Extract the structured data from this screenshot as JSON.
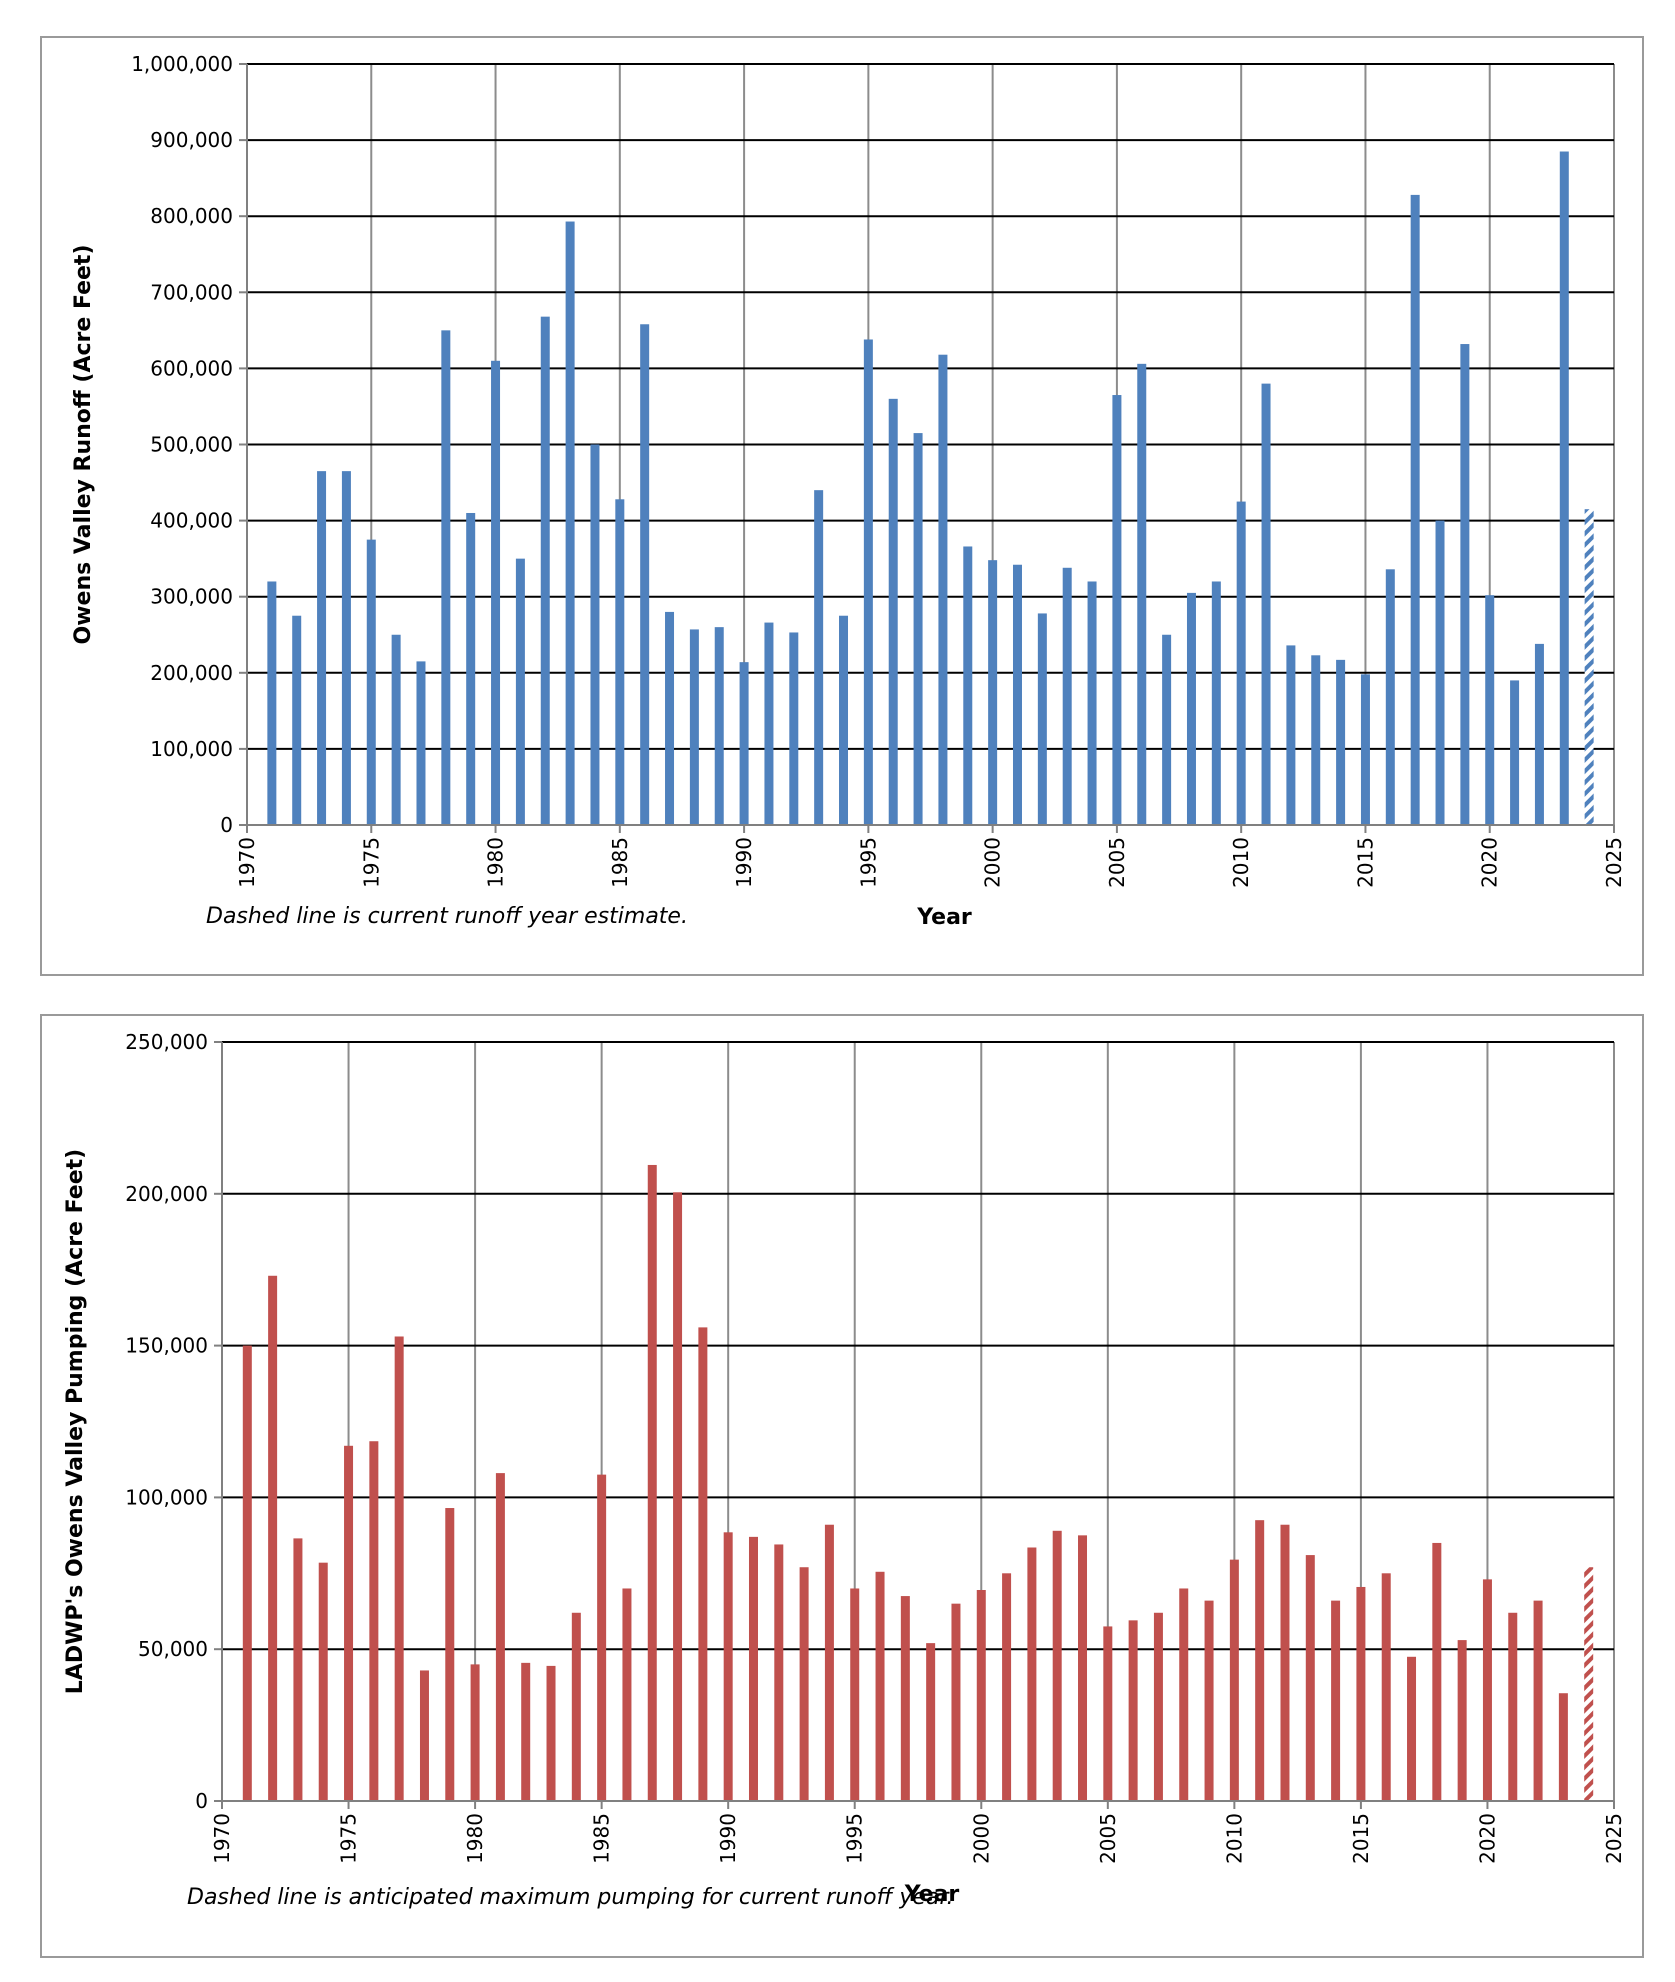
{
  "chart_data": [
    {
      "type": "bar",
      "title": "",
      "xlabel": "Year",
      "ylabel": "Owens Valley Runoff (Acre Feet)",
      "ylim": [
        0,
        1000000
      ],
      "xlim": [
        1970,
        2025
      ],
      "y_ticks": [
        "0",
        "100,000",
        "200,000",
        "300,000",
        "400,000",
        "500,000",
        "600,000",
        "700,000",
        "800,000",
        "900,000",
        "1,000,000"
      ],
      "y_tick_values": [
        0,
        100000,
        200000,
        300000,
        400000,
        500000,
        600000,
        700000,
        800000,
        900000,
        1000000
      ],
      "x_ticks": [
        "1970",
        "1975",
        "1980",
        "1985",
        "1990",
        "1995",
        "2000",
        "2005",
        "2010",
        "2015",
        "2020",
        "2025"
      ],
      "x_tick_values": [
        1970,
        1975,
        1980,
        1985,
        1990,
        1995,
        2000,
        2005,
        2010,
        2015,
        2020,
        2025
      ],
      "grid": true,
      "bar_color": "#4f81bd",
      "x": [
        1971,
        1972,
        1973,
        1974,
        1975,
        1976,
        1977,
        1978,
        1979,
        1980,
        1981,
        1982,
        1983,
        1984,
        1985,
        1986,
        1987,
        1988,
        1989,
        1990,
        1991,
        1992,
        1993,
        1994,
        1995,
        1996,
        1997,
        1998,
        1999,
        2000,
        2001,
        2002,
        2003,
        2004,
        2005,
        2006,
        2007,
        2008,
        2009,
        2010,
        2011,
        2012,
        2013,
        2014,
        2015,
        2016,
        2017,
        2018,
        2019,
        2020,
        2021,
        2022,
        2023,
        2024
      ],
      "values": [
        320000,
        275000,
        465000,
        465000,
        375000,
        250000,
        215000,
        650000,
        410000,
        610000,
        350000,
        668000,
        793000,
        500000,
        428000,
        658000,
        280000,
        257000,
        260000,
        214000,
        266000,
        253000,
        440000,
        275000,
        638000,
        560000,
        515000,
        618000,
        366000,
        348000,
        342000,
        278000,
        338000,
        320000,
        565000,
        606000,
        250000,
        305000,
        320000,
        425000,
        580000,
        236000,
        223000,
        217000,
        198000,
        336000,
        828000,
        400000,
        632000,
        302000,
        190000,
        238000,
        885000,
        415000
      ],
      "estimated_last": true,
      "note": "Dashed line is current runoff year estimate."
    },
    {
      "type": "bar",
      "title": "",
      "xlabel": "Year",
      "ylabel": "LADWP's Owens Valley Pumping (Acre Feet)",
      "ylim": [
        0,
        250000
      ],
      "xlim": [
        1970,
        2025
      ],
      "y_ticks": [
        "0",
        "50,000",
        "100,000",
        "150,000",
        "200,000",
        "250,000"
      ],
      "y_tick_values": [
        0,
        50000,
        100000,
        150000,
        200000,
        250000
      ],
      "x_ticks": [
        "1970",
        "1975",
        "1980",
        "1985",
        "1990",
        "1995",
        "2000",
        "2005",
        "2010",
        "2015",
        "2020",
        "2025"
      ],
      "x_tick_values": [
        1970,
        1975,
        1980,
        1985,
        1990,
        1995,
        2000,
        2005,
        2010,
        2015,
        2020,
        2025
      ],
      "grid": true,
      "bar_color": "#c0504d",
      "x": [
        1971,
        1972,
        1973,
        1974,
        1975,
        1976,
        1977,
        1978,
        1979,
        1980,
        1981,
        1982,
        1983,
        1984,
        1985,
        1986,
        1987,
        1988,
        1989,
        1990,
        1991,
        1992,
        1993,
        1994,
        1995,
        1996,
        1997,
        1998,
        1999,
        2000,
        2001,
        2002,
        2003,
        2004,
        2005,
        2006,
        2007,
        2008,
        2009,
        2010,
        2011,
        2012,
        2013,
        2014,
        2015,
        2016,
        2017,
        2018,
        2019,
        2020,
        2021,
        2022,
        2023,
        2024
      ],
      "values": [
        150000,
        173000,
        86500,
        78500,
        117000,
        118500,
        153000,
        43000,
        96500,
        45000,
        108000,
        45500,
        44500,
        62000,
        107500,
        70000,
        209500,
        200500,
        156000,
        88500,
        87000,
        84500,
        77000,
        91000,
        70000,
        75500,
        67500,
        52000,
        65000,
        69500,
        75000,
        83500,
        89000,
        87500,
        57500,
        59500,
        62000,
        70000,
        66000,
        79500,
        92500,
        91000,
        81000,
        66000,
        70500,
        75000,
        47500,
        85000,
        53000,
        73000,
        62000,
        66000,
        35500,
        77000
      ],
      "estimated_last": true,
      "note": "Dashed line is anticipated maximum pumping for current runoff year."
    }
  ]
}
